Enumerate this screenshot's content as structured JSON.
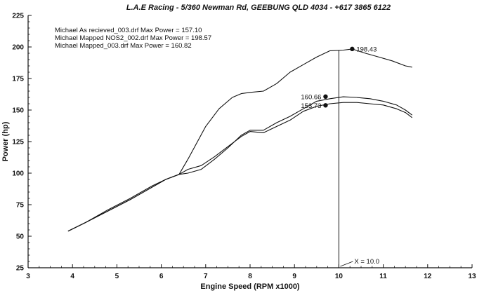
{
  "chart_data": {
    "type": "line",
    "title": "L.A.E Racing - 5/360 Newman Rd, GEEBUNG QLD 4034 - +617 3865 6122",
    "xlabel": "Engine Speed (RPM x1000)",
    "ylabel": "Power (hp)",
    "xlim": [
      3,
      13
    ],
    "ylim": [
      25,
      225
    ],
    "xticks": [
      3,
      4,
      5,
      6,
      7,
      8,
      9,
      10,
      11,
      12,
      13
    ],
    "yticks": [
      25,
      50,
      75,
      100,
      125,
      150,
      175,
      200,
      225
    ],
    "grid": false,
    "legend_position": "top-left",
    "legend": [
      "Michael As recieved_003.drf Max Power = 157.10",
      "Michael Mapped NOS2_002.drf Max Power = 198.57",
      "Michael Mapped_003.drf Max Power = 160.82"
    ],
    "cursor": {
      "x": 10.0,
      "label": "X = 10.0"
    },
    "series": [
      {
        "name": "Michael As recieved_003.drf",
        "x": [
          3.9,
          4.3,
          4.8,
          5.3,
          5.8,
          6.1,
          6.4,
          6.6,
          6.9,
          7.2,
          7.5,
          7.8,
          8.0,
          8.3,
          8.6,
          8.9,
          9.2,
          9.5,
          9.8,
          10.1,
          10.4,
          10.7,
          11.0,
          11.3,
          11.5,
          11.65
        ],
        "values": [
          54,
          61,
          70,
          79,
          89,
          95,
          99,
          103,
          106,
          113,
          121,
          129,
          133,
          132,
          137,
          142,
          149,
          153,
          155,
          156,
          156,
          155,
          154,
          151,
          148,
          144
        ]
      },
      {
        "name": "Michael Mapped NOS2_002.drf",
        "x": [
          3.9,
          4.3,
          4.8,
          5.3,
          5.8,
          6.1,
          6.4,
          6.6,
          6.8,
          7.0,
          7.3,
          7.6,
          7.8,
          8.0,
          8.3,
          8.6,
          8.9,
          9.2,
          9.5,
          9.8,
          10.1,
          10.3,
          10.6,
          10.9,
          11.2,
          11.5,
          11.65
        ],
        "values": [
          54,
          61,
          70,
          79,
          89,
          95,
          99,
          111,
          124,
          137,
          151,
          160,
          163,
          164,
          165,
          171,
          180,
          186,
          192,
          197,
          197.5,
          198.4,
          195,
          192,
          189,
          185,
          184
        ]
      },
      {
        "name": "Michael Mapped_003.drf",
        "x": [
          3.9,
          4.3,
          4.8,
          5.3,
          5.8,
          6.1,
          6.4,
          6.6,
          6.9,
          7.2,
          7.5,
          7.8,
          8.0,
          8.3,
          8.6,
          8.9,
          9.2,
          9.5,
          9.8,
          10.1,
          10.4,
          10.7,
          11.0,
          11.3,
          11.5,
          11.65
        ],
        "values": [
          54,
          61,
          71,
          80,
          90,
          95,
          99,
          100,
          103,
          111,
          120,
          130,
          134,
          134,
          140,
          145,
          151,
          157,
          159,
          160.5,
          160,
          159,
          157,
          154,
          150,
          146
        ]
      }
    ],
    "markers": [
      {
        "x": 10.3,
        "y": 198.43,
        "label": "198.43",
        "side": "right"
      },
      {
        "x": 9.7,
        "y": 160.66,
        "label": "160.66",
        "side": "left"
      },
      {
        "x": 9.7,
        "y": 153.73,
        "label": "153.73",
        "side": "left"
      }
    ]
  }
}
